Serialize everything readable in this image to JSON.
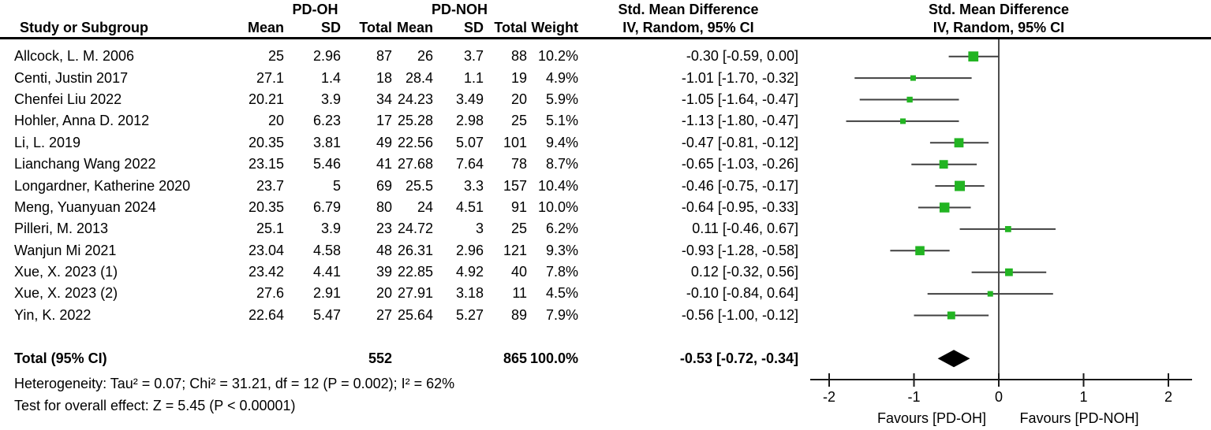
{
  "figure": {
    "group_exp": "PD-OH",
    "group_ctrl": "PD-NOH",
    "col_study": "Study or Subgroup",
    "col_mean": "Mean",
    "col_sd": "SD",
    "col_total": "Total",
    "col_weight": "Weight",
    "effect_title": "Std. Mean Difference",
    "effect_subtitle": "IV, Random, 95% CI",
    "plot_title": "Std. Mean Difference",
    "plot_subtitle": "IV, Random, 95% CI"
  },
  "chart_data": {
    "type": "forest",
    "effect_measure": "Std. Mean Difference",
    "method": "IV, Random, 95% CI",
    "axis": {
      "ticks": [
        -2,
        -1,
        0,
        1,
        2
      ],
      "xlim": [
        -2.2,
        2.2
      ],
      "favours_left": "Favours [PD-OH]",
      "favours_right": "Favours [PD-NOH]"
    },
    "studies": [
      {
        "name": "Allcock, L. M. 2006",
        "mean1": "25",
        "sd1": "2.96",
        "n1": "87",
        "mean2": "26",
        "sd2": "3.7",
        "n2": "88",
        "weight": "10.2%",
        "weight_value": 10.2,
        "est": -0.3,
        "lo": -0.59,
        "hi": 0.0,
        "ci_label": "-0.30 [-0.59, 0.00]"
      },
      {
        "name": "Centi, Justin 2017",
        "mean1": "27.1",
        "sd1": "1.4",
        "n1": "18",
        "mean2": "28.4",
        "sd2": "1.1",
        "n2": "19",
        "weight": "4.9%",
        "weight_value": 4.9,
        "est": -1.01,
        "lo": -1.7,
        "hi": -0.32,
        "ci_label": "-1.01 [-1.70, -0.32]"
      },
      {
        "name": "Chenfei Liu 2022",
        "mean1": "20.21",
        "sd1": "3.9",
        "n1": "34",
        "mean2": "24.23",
        "sd2": "3.49",
        "n2": "20",
        "weight": "5.9%",
        "weight_value": 5.9,
        "est": -1.05,
        "lo": -1.64,
        "hi": -0.47,
        "ci_label": "-1.05 [-1.64, -0.47]"
      },
      {
        "name": "Hohler, Anna D. 2012",
        "mean1": "20",
        "sd1": "6.23",
        "n1": "17",
        "mean2": "25.28",
        "sd2": "2.98",
        "n2": "25",
        "weight": "5.1%",
        "weight_value": 5.1,
        "est": -1.13,
        "lo": -1.8,
        "hi": -0.47,
        "ci_label": "-1.13 [-1.80, -0.47]"
      },
      {
        "name": "Li, L. 2019",
        "mean1": "20.35",
        "sd1": "3.81",
        "n1": "49",
        "mean2": "22.56",
        "sd2": "5.07",
        "n2": "101",
        "weight": "9.4%",
        "weight_value": 9.4,
        "est": -0.47,
        "lo": -0.81,
        "hi": -0.12,
        "ci_label": "-0.47 [-0.81, -0.12]"
      },
      {
        "name": "Lianchang Wang 2022",
        "mean1": "23.15",
        "sd1": "5.46",
        "n1": "41",
        "mean2": "27.68",
        "sd2": "7.64",
        "n2": "78",
        "weight": "8.7%",
        "weight_value": 8.7,
        "est": -0.65,
        "lo": -1.03,
        "hi": -0.26,
        "ci_label": "-0.65 [-1.03, -0.26]"
      },
      {
        "name": "Longardner, Katherine 2020",
        "mean1": "23.7",
        "sd1": "5",
        "n1": "69",
        "mean2": "25.5",
        "sd2": "3.3",
        "n2": "157",
        "weight": "10.4%",
        "weight_value": 10.4,
        "est": -0.46,
        "lo": -0.75,
        "hi": -0.17,
        "ci_label": "-0.46 [-0.75, -0.17]"
      },
      {
        "name": "Meng, Yuanyuan 2024",
        "mean1": "20.35",
        "sd1": "6.79",
        "n1": "80",
        "mean2": "24",
        "sd2": "4.51",
        "n2": "91",
        "weight": "10.0%",
        "weight_value": 10.0,
        "est": -0.64,
        "lo": -0.95,
        "hi": -0.33,
        "ci_label": "-0.64 [-0.95, -0.33]"
      },
      {
        "name": "Pilleri, M. 2013",
        "mean1": "25.1",
        "sd1": "3.9",
        "n1": "23",
        "mean2": "24.72",
        "sd2": "3",
        "n2": "25",
        "weight": "6.2%",
        "weight_value": 6.2,
        "est": 0.11,
        "lo": -0.46,
        "hi": 0.67,
        "ci_label": "0.11 [-0.46, 0.67]"
      },
      {
        "name": "Wanjun Mi 2021",
        "mean1": "23.04",
        "sd1": "4.58",
        "n1": "48",
        "mean2": "26.31",
        "sd2": "2.96",
        "n2": "121",
        "weight": "9.3%",
        "weight_value": 9.3,
        "est": -0.93,
        "lo": -1.28,
        "hi": -0.58,
        "ci_label": "-0.93 [-1.28, -0.58]"
      },
      {
        "name": "Xue, X. 2023 (1)",
        "mean1": "23.42",
        "sd1": "4.41",
        "n1": "39",
        "mean2": "22.85",
        "sd2": "4.92",
        "n2": "40",
        "weight": "7.8%",
        "weight_value": 7.8,
        "est": 0.12,
        "lo": -0.32,
        "hi": 0.56,
        "ci_label": "0.12 [-0.32, 0.56]"
      },
      {
        "name": "Xue, X. 2023 (2)",
        "mean1": "27.6",
        "sd1": "2.91",
        "n1": "20",
        "mean2": "27.91",
        "sd2": "3.18",
        "n2": "11",
        "weight": "4.5%",
        "weight_value": 4.5,
        "est": -0.1,
        "lo": -0.84,
        "hi": 0.64,
        "ci_label": "-0.10 [-0.84, 0.64]"
      },
      {
        "name": "Yin, K. 2022",
        "mean1": "22.64",
        "sd1": "5.47",
        "n1": "27",
        "mean2": "25.64",
        "sd2": "5.27",
        "n2": "89",
        "weight": "7.9%",
        "weight_value": 7.9,
        "est": -0.56,
        "lo": -1.0,
        "hi": -0.12,
        "ci_label": "-0.56 [-1.00, -0.12]"
      }
    ],
    "total": {
      "label": "Total (95% CI)",
      "n1": "552",
      "n2": "865",
      "weight": "100.0%",
      "est": -0.53,
      "lo": -0.72,
      "hi": -0.34,
      "ci_label": "-0.53 [-0.72, -0.34]"
    },
    "heterogeneity": "Heterogeneity: Tau² = 0.07; Chi² = 31.21, df = 12 (P = 0.002); I² = 62%",
    "overall_effect": "Test for overall effect: Z = 5.45 (P < 0.00001)"
  },
  "colors": {
    "marker_green": "#22b422",
    "ci_line": "#404040",
    "zero_line": "#4d4d4d",
    "axis": "#1a1a1a",
    "diamond": "#000000",
    "rule": "#000000"
  }
}
